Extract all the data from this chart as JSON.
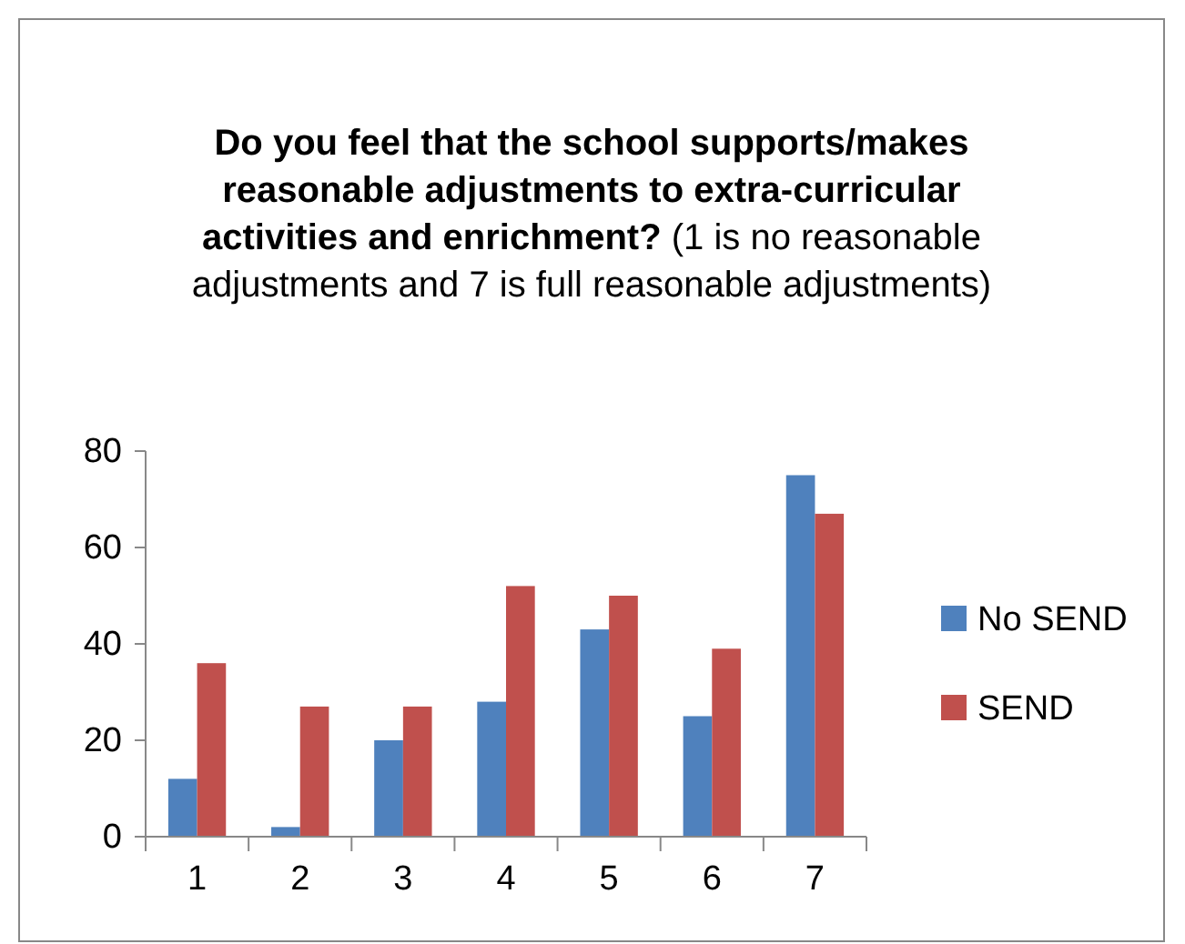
{
  "chart_data": {
    "type": "bar",
    "title": "Do you feel that the school supports/makes reasonable adjustments to extra-curricular activities and enrichment?",
    "subtitle": "(1 is no reasonable adjustments and 7 is full reasonable adjustments)",
    "categories": [
      "1",
      "2",
      "3",
      "4",
      "5",
      "6",
      "7"
    ],
    "series": [
      {
        "name": "No SEND",
        "color": "#4f81bd",
        "values": [
          12,
          2,
          20,
          28,
          43,
          25,
          75
        ]
      },
      {
        "name": "SEND",
        "color": "#c0504d",
        "values": [
          36,
          27,
          27,
          52,
          50,
          39,
          67
        ]
      }
    ],
    "ylim": [
      0,
      80
    ],
    "yticks": [
      0,
      20,
      40,
      60,
      80
    ],
    "grid": false,
    "legend": "right"
  }
}
